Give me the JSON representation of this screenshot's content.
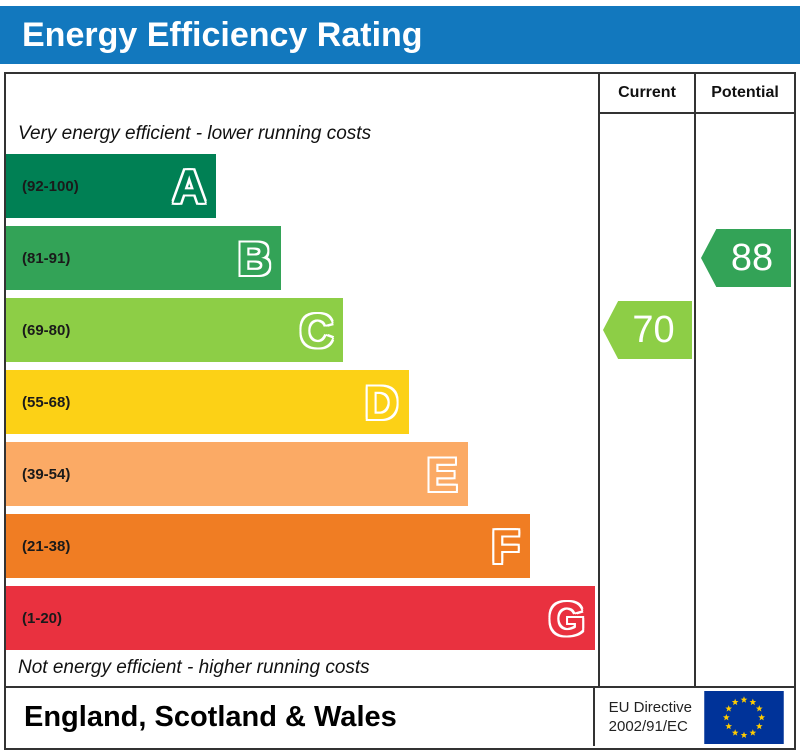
{
  "title": "Energy Efficiency Rating",
  "colors": {
    "header_bg": "#1278be",
    "border": "#333333"
  },
  "columns": {
    "current_label": "Current",
    "potential_label": "Potential"
  },
  "notes": {
    "top": "Very energy efficient - lower running costs",
    "bottom": "Not energy efficient - higher running costs"
  },
  "chart_data": {
    "type": "bar",
    "title": "Energy Efficiency Rating",
    "bands": [
      {
        "letter": "A",
        "range_label": "(92-100)",
        "min": 92,
        "max": 100,
        "color": "#008054",
        "width_pct": 35.5
      },
      {
        "letter": "B",
        "range_label": "(81-91)",
        "min": 81,
        "max": 91,
        "color": "#33a357",
        "width_pct": 46.5
      },
      {
        "letter": "C",
        "range_label": "(69-80)",
        "min": 69,
        "max": 80,
        "color": "#8dce46",
        "width_pct": 57
      },
      {
        "letter": "D",
        "range_label": "(55-68)",
        "min": 55,
        "max": 68,
        "color": "#fcd116",
        "width_pct": 68
      },
      {
        "letter": "E",
        "range_label": "(39-54)",
        "min": 39,
        "max": 54,
        "color": "#fbaa65",
        "width_pct": 78
      },
      {
        "letter": "F",
        "range_label": "(21-38)",
        "min": 21,
        "max": 38,
        "color": "#f07d23",
        "width_pct": 88.5
      },
      {
        "letter": "G",
        "range_label": "(1-20)",
        "min": 1,
        "max": 20,
        "color": "#e9313f",
        "width_pct": 99.5
      }
    ],
    "current": {
      "value": 70,
      "band": "C",
      "band_index": 2,
      "color": "#8dce46"
    },
    "potential": {
      "value": 88,
      "band": "B",
      "band_index": 1,
      "color": "#33a357"
    }
  },
  "footer": {
    "region": "England, Scotland & Wales",
    "directive_lines": [
      "EU Directive",
      "2002/91/EC"
    ],
    "flag": {
      "background": "#003399",
      "star_color": "#ffcc00"
    }
  }
}
